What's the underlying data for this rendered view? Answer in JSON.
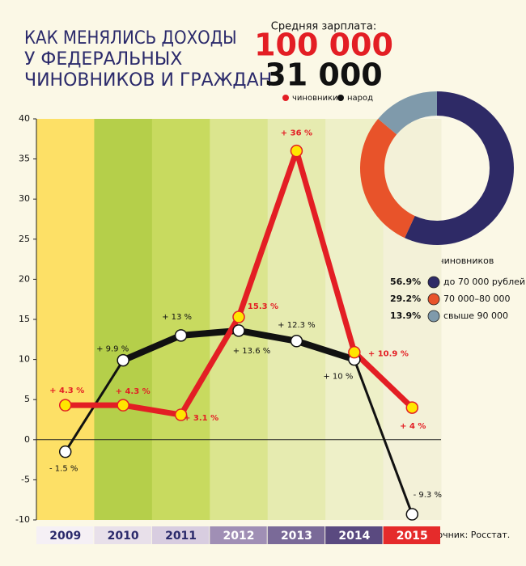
{
  "chart_data": {
    "type": "line",
    "title": [
      "КАК МЕНЯЛИСЬ ДОХОДЫ",
      "У ФЕДЕРАЛЬНЫХ",
      "ЧИНОВНИКОВ И ГРАЖДАН"
    ],
    "subtitle": "Средняя зарплата:",
    "categories": [
      "2009",
      "2010",
      "2011",
      "2012",
      "2013",
      "2014",
      "2015"
    ],
    "series": [
      {
        "name": "чиновники",
        "color": "#e31e24",
        "average": "100 000",
        "values": [
          4.3,
          4.3,
          3.1,
          15.3,
          36,
          10.9,
          4
        ],
        "value_labels": [
          "+ 4.3 %",
          "+ 4.3 %",
          "+ 3.1 %",
          "15.3 %",
          "+ 36 %",
          "+ 10.9 %",
          "+ 4 %"
        ]
      },
      {
        "name": "народ",
        "color": "#111111",
        "average": "31 000",
        "values": [
          -1.5,
          9.9,
          13,
          13.6,
          12.3,
          10,
          -9.3
        ],
        "value_labels": [
          "- 1.5 %",
          "+ 9.9 %",
          "+ 13 %",
          "+ 13.6 %",
          "+ 12.3 %",
          "+ 10 %",
          "- 9.3 %"
        ]
      }
    ],
    "ylim": [
      -10,
      40
    ],
    "yticks": [
      -10,
      -5,
      0,
      5,
      10,
      15,
      20,
      25,
      30,
      35,
      40
    ],
    "donut": {
      "title": "зарплаты чиновников",
      "values": [
        56.9,
        29.2,
        13.9
      ],
      "value_labels": [
        "56.9%",
        "29.2%",
        "13.9%"
      ],
      "labels": [
        "до 70 000 рублей",
        "70 000–80 000",
        "свыше 90 000"
      ],
      "colors": [
        "#2e2a66",
        "#e8532a",
        "#7f9aab"
      ]
    },
    "source": "Источник: Росстат."
  }
}
